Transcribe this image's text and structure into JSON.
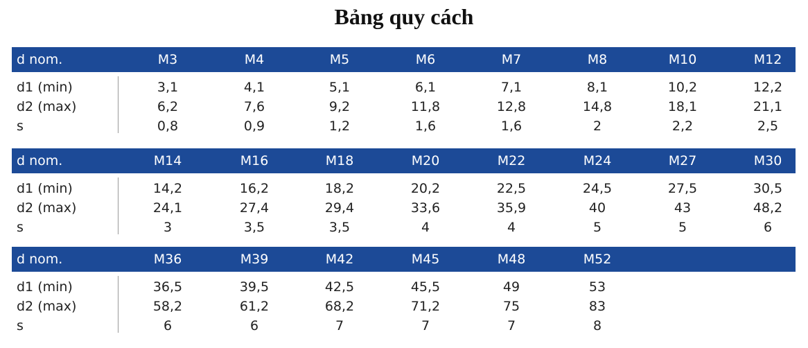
{
  "title": "Bảng quy cách",
  "tables": [
    {
      "header": [
        "d nom.",
        "M3",
        "M4",
        "M5",
        "M6",
        "M7",
        "M8",
        "M10",
        "M12"
      ],
      "rows": [
        {
          "label": "d1 (min)",
          "values": [
            "3,1",
            "4,1",
            "5,1",
            "6,1",
            "7,1",
            "8,1",
            "10,2",
            "12,2"
          ]
        },
        {
          "label": "d2 (max)",
          "values": [
            "6,2",
            "7,6",
            "9,2",
            "11,8",
            "12,8",
            "14,8",
            "18,1",
            "21,1"
          ]
        },
        {
          "label": "s",
          "values": [
            "0,8",
            "0,9",
            "1,2",
            "1,6",
            "1,6",
            "2",
            "2,2",
            "2,5"
          ]
        }
      ]
    },
    {
      "header": [
        "d nom.",
        "M14",
        "M16",
        "M18",
        "M20",
        "M22",
        "M24",
        "M27",
        "M30"
      ],
      "rows": [
        {
          "label": "d1 (min)",
          "values": [
            "14,2",
            "16,2",
            "18,2",
            "20,2",
            "22,5",
            "24,5",
            "27,5",
            "30,5"
          ]
        },
        {
          "label": "d2 (max)",
          "values": [
            "24,1",
            "27,4",
            "29,4",
            "33,6",
            "35,9",
            "40",
            "43",
            "48,2"
          ]
        },
        {
          "label": "s",
          "values": [
            "3",
            "3,5",
            "3,5",
            "4",
            "4",
            "5",
            "5",
            "6"
          ]
        }
      ]
    },
    {
      "header": [
        "d nom.",
        "M36",
        "M39",
        "M42",
        "M45",
        "M48",
        "M52"
      ],
      "rows": [
        {
          "label": "d1 (min)",
          "values": [
            "36,5",
            "39,5",
            "42,5",
            "45,5",
            "49",
            "53"
          ]
        },
        {
          "label": "d2 (max)",
          "values": [
            "58,2",
            "61,2",
            "68,2",
            "71,2",
            "75",
            "83"
          ]
        },
        {
          "label": "s",
          "values": [
            "6",
            "6",
            "7",
            "7",
            "7",
            "8"
          ]
        }
      ]
    }
  ]
}
